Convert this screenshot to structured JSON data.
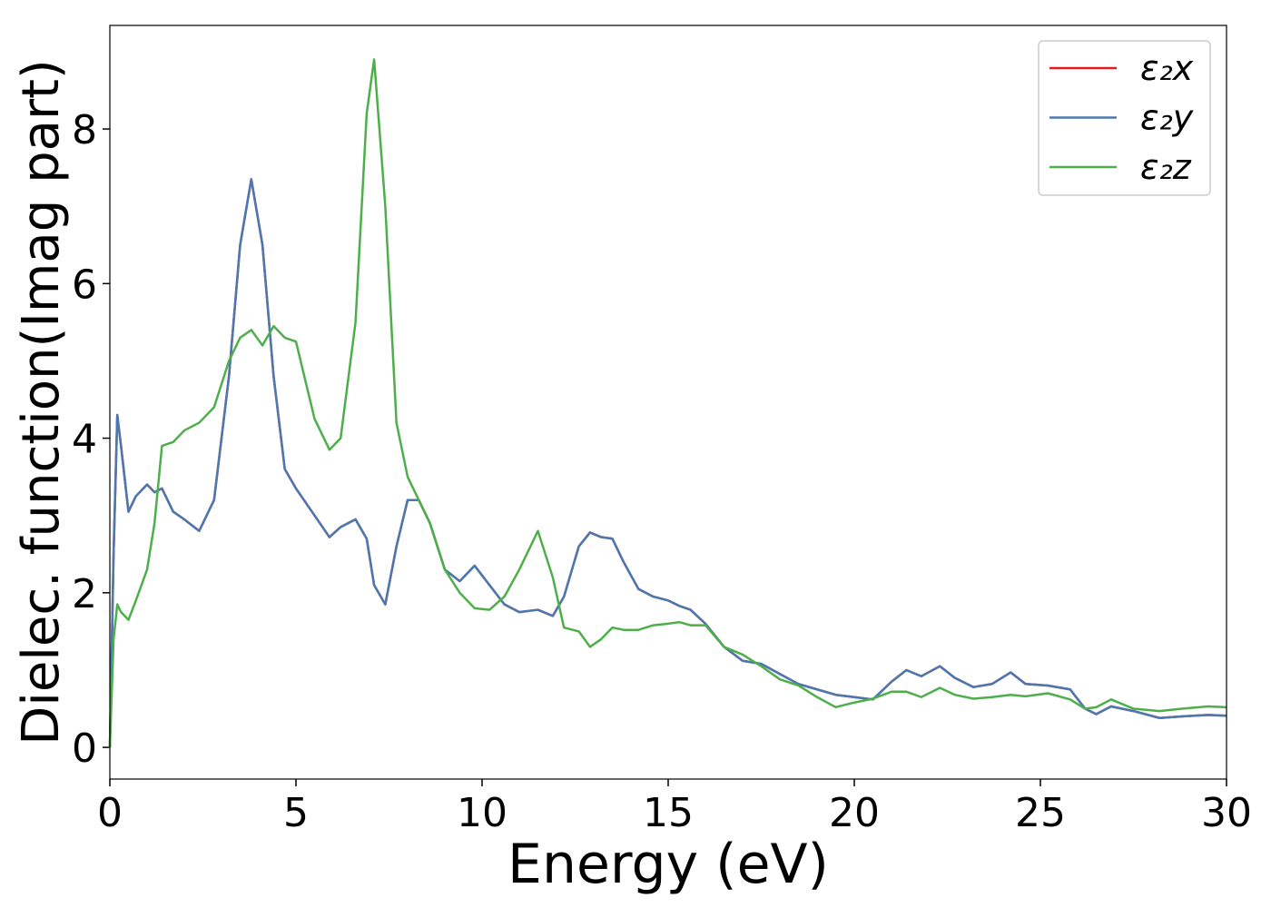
{
  "chart_data": {
    "type": "line",
    "xlabel": "Energy (eV)",
    "ylabel": "Dielec. function(Imag part)",
    "x": [
      0,
      0.1,
      0.2,
      0.3,
      0.5,
      0.7,
      1.0,
      1.2,
      1.4,
      1.7,
      2.0,
      2.4,
      2.8,
      3.2,
      3.5,
      3.8,
      4.1,
      4.4,
      4.7,
      5.0,
      5.5,
      5.9,
      6.2,
      6.6,
      6.9,
      7.1,
      7.4,
      7.7,
      8.0,
      8.3,
      8.6,
      9.0,
      9.4,
      9.8,
      10.2,
      10.6,
      11.0,
      11.5,
      11.9,
      12.2,
      12.6,
      12.9,
      13.2,
      13.5,
      13.8,
      14.2,
      14.6,
      15.0,
      15.3,
      15.6,
      16.0,
      16.5,
      17.0,
      17.5,
      18.0,
      18.5,
      19.0,
      19.5,
      20.0,
      20.5,
      21.0,
      21.4,
      21.8,
      22.3,
      22.7,
      23.2,
      23.7,
      24.2,
      24.6,
      25.2,
      25.8,
      26.2,
      26.5,
      26.9,
      27.5,
      28.2,
      28.8,
      29.5,
      30
    ],
    "series": [
      {
        "name": "ε₂x",
        "color": "#e41a1c",
        "values": [
          0,
          2.5,
          4.3,
          3.9,
          3.05,
          3.25,
          3.4,
          3.3,
          3.35,
          3.05,
          2.95,
          2.8,
          3.2,
          4.8,
          6.5,
          7.35,
          6.5,
          4.8,
          3.6,
          3.35,
          3.0,
          2.72,
          2.85,
          2.95,
          2.7,
          2.1,
          1.85,
          2.6,
          3.2,
          3.2,
          2.9,
          2.3,
          2.15,
          2.35,
          2.1,
          1.85,
          1.75,
          1.78,
          1.7,
          1.95,
          2.6,
          2.78,
          2.72,
          2.7,
          2.4,
          2.05,
          1.95,
          1.9,
          1.83,
          1.78,
          1.6,
          1.3,
          1.12,
          1.08,
          0.95,
          0.82,
          0.75,
          0.68,
          0.65,
          0.62,
          0.85,
          1.0,
          0.92,
          1.05,
          0.9,
          0.78,
          0.82,
          0.97,
          0.82,
          0.8,
          0.75,
          0.5,
          0.43,
          0.53,
          0.47,
          0.38,
          0.4,
          0.42,
          0.41
        ]
      },
      {
        "name": "ε₂y",
        "color": "#4a78b0",
        "values": [
          0,
          2.5,
          4.3,
          3.9,
          3.05,
          3.25,
          3.4,
          3.3,
          3.35,
          3.05,
          2.95,
          2.8,
          3.2,
          4.8,
          6.5,
          7.35,
          6.5,
          4.8,
          3.6,
          3.35,
          3.0,
          2.72,
          2.85,
          2.95,
          2.7,
          2.1,
          1.85,
          2.6,
          3.2,
          3.2,
          2.9,
          2.3,
          2.15,
          2.35,
          2.1,
          1.85,
          1.75,
          1.78,
          1.7,
          1.95,
          2.6,
          2.78,
          2.72,
          2.7,
          2.4,
          2.05,
          1.95,
          1.9,
          1.83,
          1.78,
          1.6,
          1.3,
          1.12,
          1.08,
          0.95,
          0.82,
          0.75,
          0.68,
          0.65,
          0.62,
          0.85,
          1.0,
          0.92,
          1.05,
          0.9,
          0.78,
          0.82,
          0.97,
          0.82,
          0.8,
          0.75,
          0.5,
          0.43,
          0.53,
          0.47,
          0.38,
          0.4,
          0.42,
          0.41
        ]
      },
      {
        "name": "ε₂z",
        "color": "#4daf4a",
        "values": [
          0,
          1.4,
          1.85,
          1.75,
          1.65,
          1.9,
          2.3,
          2.9,
          3.9,
          3.95,
          4.1,
          4.2,
          4.4,
          5.0,
          5.3,
          5.4,
          5.2,
          5.45,
          5.3,
          5.25,
          4.25,
          3.85,
          4.0,
          5.5,
          8.2,
          8.9,
          7.0,
          4.2,
          3.5,
          3.2,
          2.9,
          2.3,
          2.0,
          1.8,
          1.78,
          1.95,
          2.3,
          2.8,
          2.2,
          1.55,
          1.5,
          1.3,
          1.4,
          1.55,
          1.52,
          1.52,
          1.58,
          1.6,
          1.62,
          1.58,
          1.58,
          1.3,
          1.2,
          1.05,
          0.88,
          0.8,
          0.65,
          0.52,
          0.58,
          0.63,
          0.72,
          0.72,
          0.65,
          0.77,
          0.68,
          0.63,
          0.65,
          0.68,
          0.66,
          0.7,
          0.62,
          0.5,
          0.52,
          0.62,
          0.5,
          0.47,
          0.5,
          0.53,
          0.52
        ]
      }
    ],
    "xlim": [
      0,
      30
    ],
    "xticks": [
      0,
      5,
      10,
      15,
      20,
      25,
      30
    ],
    "ylim": [
      -0.41,
      9.34
    ],
    "yticks": [
      0,
      2,
      4,
      6,
      8
    ],
    "legend": "upper right"
  }
}
